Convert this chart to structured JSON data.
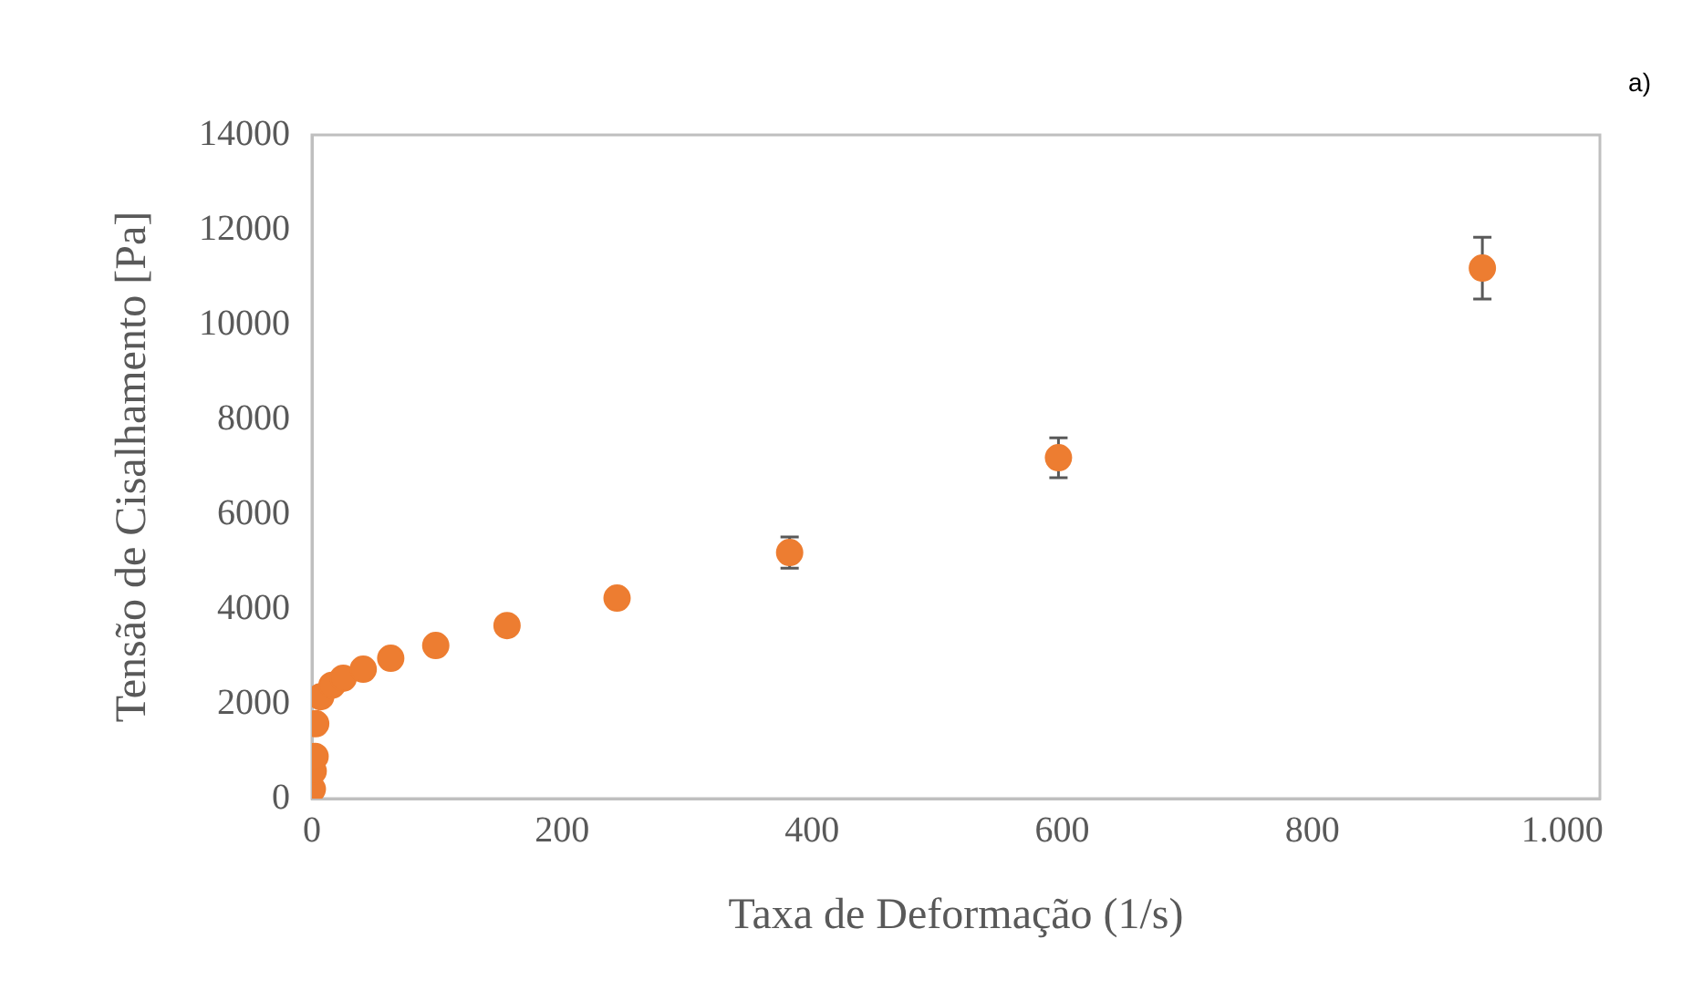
{
  "chart_data": {
    "type": "scatter",
    "xlabel": "Taxa de Deformação (1/s)",
    "ylabel": "Tensão de Cisalhamento [Pa]",
    "annotations": [
      "a)"
    ],
    "x": [
      0.3,
      1,
      2.5,
      3,
      7,
      16,
      25,
      41,
      63,
      99,
      156,
      244,
      382,
      597,
      936
    ],
    "values": [
      200,
      580,
      890,
      1580,
      2150,
      2390,
      2540,
      2730,
      2960,
      3230,
      3650,
      4230,
      5190,
      7190,
      11190
    ],
    "errors": [
      null,
      null,
      null,
      null,
      null,
      null,
      null,
      null,
      null,
      null,
      null,
      null,
      330,
      420,
      650
    ],
    "color": "#ed7d31",
    "marker": "circle",
    "grid": false,
    "legend": false,
    "xlim": [
      0,
      1030
    ],
    "xticks": [
      0,
      200,
      400,
      600,
      800,
      {
        "value": 1000,
        "label": "1.000"
      }
    ],
    "ylim": [
      0,
      14000
    ],
    "yticks": [
      0,
      2000,
      4000,
      6000,
      8000,
      10000,
      12000,
      14000
    ]
  }
}
